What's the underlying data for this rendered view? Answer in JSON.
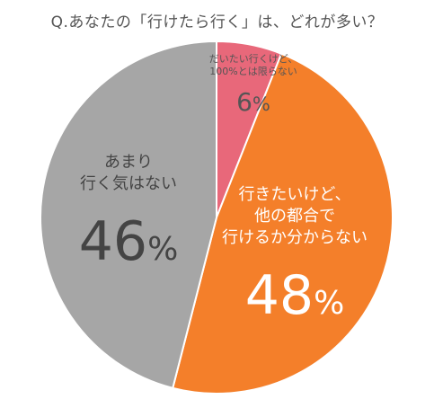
{
  "title": "Q.あなたの「行けたら行く」は、どれが多い？",
  "chart_data": {
    "type": "pie",
    "title": "Q.あなたの「行けたら行く」は、どれが多い？",
    "slices": [
      {
        "label_lines": [
          "だいたい行くけど、",
          "100%とは限らない"
        ],
        "value": 6,
        "percent_num": "6",
        "color": "#e8687a"
      },
      {
        "label_lines": [
          "行きたいけど、",
          "他の都合で",
          "行けるか分からない"
        ],
        "value": 48,
        "percent_num": "48",
        "color": "#f47f2a"
      },
      {
        "label_lines": [
          "あまり",
          "行く気はない"
        ],
        "value": 46,
        "percent_num": "46",
        "color": "#a6a6a6"
      }
    ],
    "percent_sign": "%",
    "start_angle": "12 o'clock",
    "direction": "clockwise",
    "legend": "none"
  }
}
